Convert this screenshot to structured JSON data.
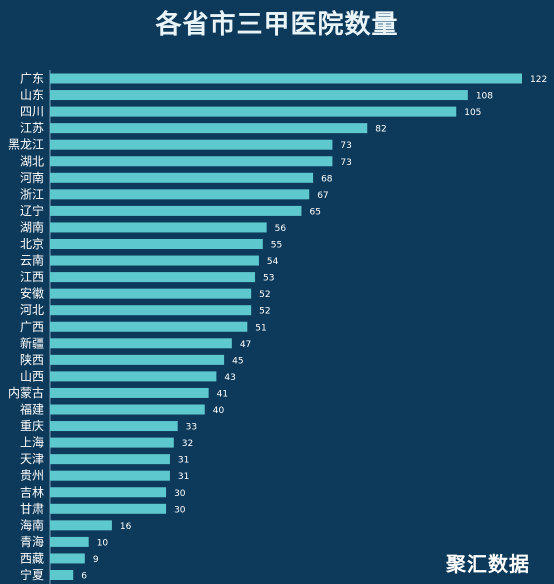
{
  "chart_data": {
    "type": "bar",
    "orientation": "horizontal",
    "title": "各省市三甲医院数量",
    "categories": [
      "广东",
      "山东",
      "四川",
      "江苏",
      "黑龙江",
      "湖北",
      "河南",
      "浙江",
      "辽宁",
      "湖南",
      "北京",
      "云南",
      "江西",
      "安徽",
      "河北",
      "广西",
      "新疆",
      "陕西",
      "山西",
      "内蒙古",
      "福建",
      "重庆",
      "上海",
      "天津",
      "贵州",
      "吉林",
      "甘肃",
      "海南",
      "青海",
      "西藏",
      "宁夏"
    ],
    "values": [
      122,
      108,
      105,
      82,
      73,
      73,
      68,
      67,
      65,
      56,
      55,
      54,
      53,
      52,
      52,
      51,
      47,
      45,
      43,
      41,
      40,
      33,
      32,
      31,
      31,
      30,
      30,
      16,
      10,
      9,
      6
    ],
    "xlim": [
      0,
      122
    ],
    "bar_color": "#5ec8cf",
    "background": "#0d3a5a"
  },
  "source": "聚汇数据"
}
